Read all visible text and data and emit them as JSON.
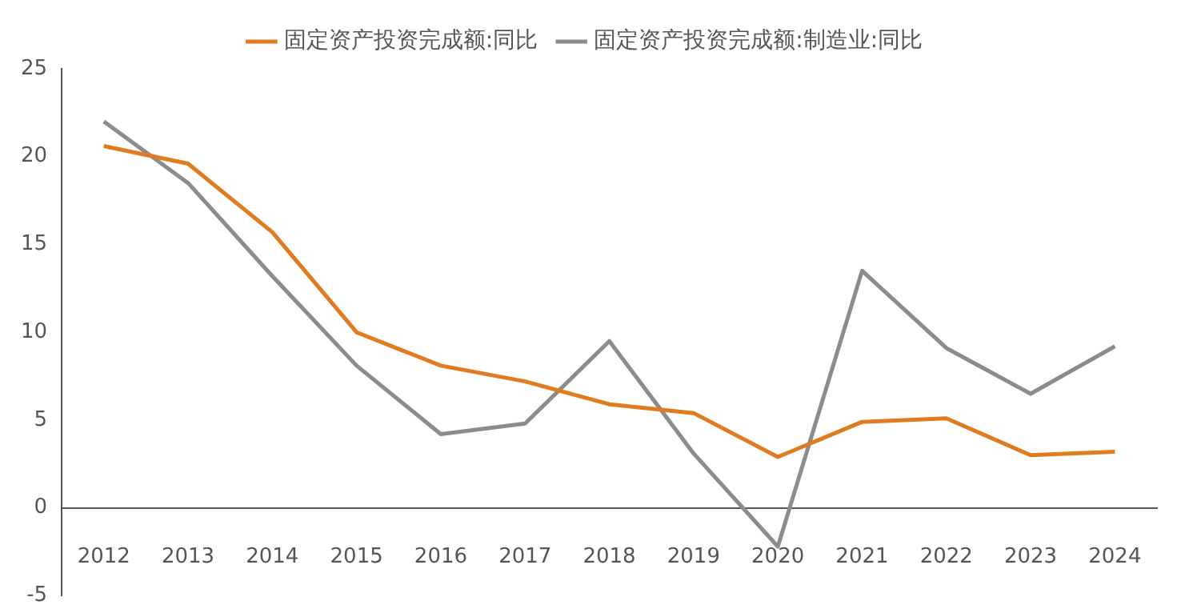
{
  "chart_data": {
    "type": "line",
    "categories": [
      "2012",
      "2013",
      "2014",
      "2015",
      "2016",
      "2017",
      "2018",
      "2019",
      "2020",
      "2021",
      "2022",
      "2023",
      "2024"
    ],
    "series": [
      {
        "name": "固定资产投资完成额:同比",
        "color": "#e07b20",
        "values": [
          20.6,
          19.6,
          15.7,
          10.0,
          8.1,
          7.2,
          5.9,
          5.4,
          2.9,
          4.9,
          5.1,
          3.0,
          3.2
        ]
      },
      {
        "name": "固定资产投资完成额:制造业:同比",
        "color": "#8c8c8c",
        "values": [
          22.0,
          18.5,
          13.2,
          8.1,
          4.2,
          4.8,
          9.5,
          3.1,
          -2.2,
          13.5,
          9.1,
          6.5,
          9.2
        ]
      }
    ],
    "ylim": [
      -5,
      25
    ],
    "yticks": [
      -5,
      0,
      5,
      10,
      15,
      20,
      25
    ],
    "grid": false,
    "legend": "top",
    "marker": "none",
    "line_style": "solid"
  }
}
